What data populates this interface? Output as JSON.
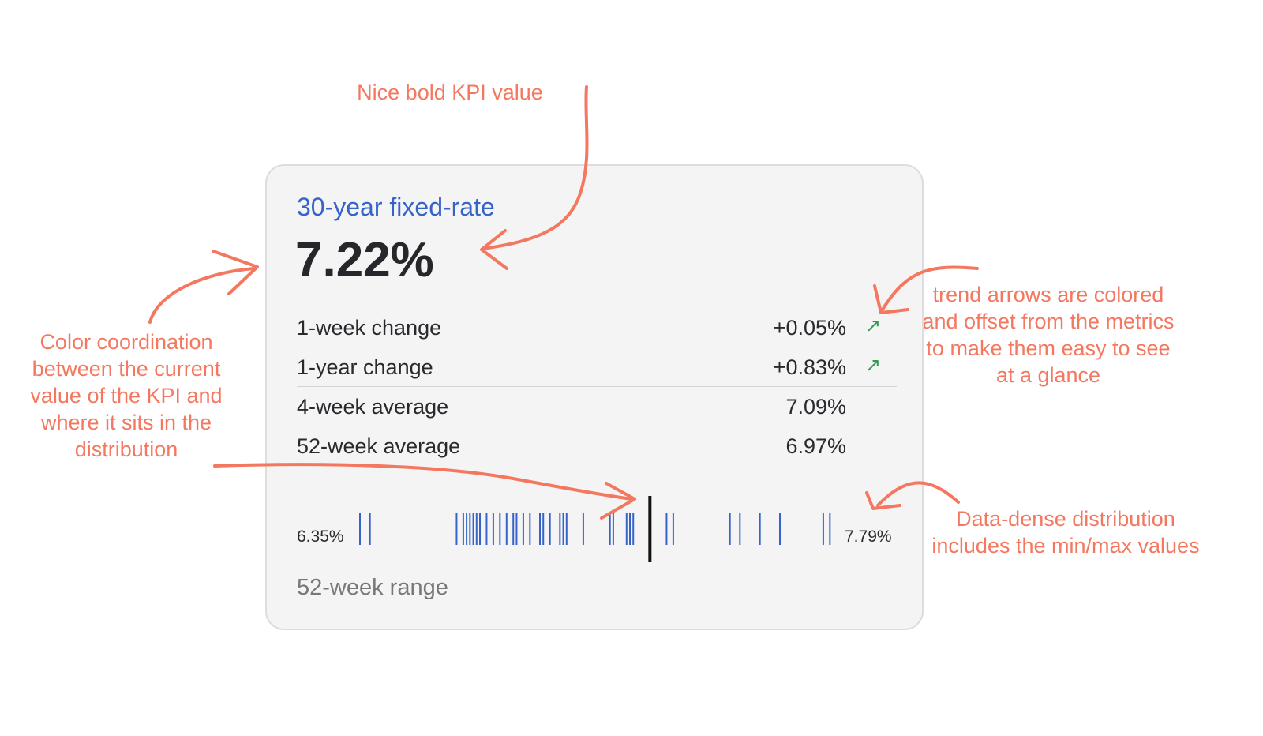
{
  "annotations": {
    "kpi": "Nice bold KPI value",
    "color": "Color coordination between the current value of the KPI and where it sits in the distribution",
    "trend": "trend arrows are colored and offset from the metrics to make them easy to see at a glance",
    "distribution": "Data-dense distribution includes the min/max values"
  },
  "card": {
    "title": "30-year fixed-rate",
    "kpi_value": "7.22%",
    "metrics": [
      {
        "label": "1-week change",
        "value": "+0.05%",
        "trend": "↗",
        "trend_icon": "trend-up-arrow-icon"
      },
      {
        "label": "1-year change",
        "value": "+0.83%",
        "trend": "↗",
        "trend_icon": "trend-up-arrow-icon"
      },
      {
        "label": "4-week average",
        "value": "7.09%",
        "trend": ""
      },
      {
        "label": "52-week average",
        "value": "6.97%",
        "trend": ""
      }
    ],
    "range": {
      "min_label": "6.35%",
      "max_label": "7.79%",
      "label": "52-week range",
      "min": 6.35,
      "max": 7.79,
      "current": 7.22
    }
  },
  "colors": {
    "accent": "#3563c9",
    "annotation": "#f4785f",
    "trend_up": "#2e9e4e",
    "kpi": "#26262b"
  },
  "chart_data": {
    "type": "strip",
    "title": "",
    "unit": "%",
    "range": [
      6.35,
      7.79
    ],
    "current": 7.22,
    "values": [
      6.35,
      6.38,
      6.64,
      6.66,
      6.67,
      6.68,
      6.69,
      6.7,
      6.71,
      6.73,
      6.75,
      6.77,
      6.79,
      6.81,
      6.82,
      6.84,
      6.86,
      6.89,
      6.9,
      6.92,
      6.95,
      6.96,
      6.97,
      7.02,
      7.1,
      7.11,
      7.15,
      7.16,
      7.17,
      7.27,
      7.29,
      7.46,
      7.49,
      7.55,
      7.61,
      7.74,
      7.76
    ]
  }
}
